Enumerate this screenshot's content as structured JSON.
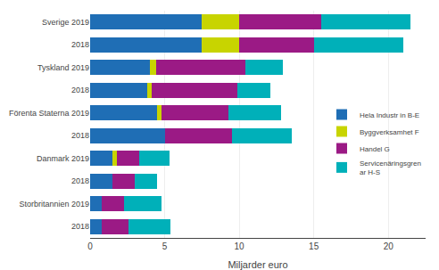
{
  "chart_data": {
    "type": "bar",
    "orientation": "horizontal",
    "stacked": true,
    "categories": [
      "Sverige 2019",
      "2018",
      "Tyskland 2019",
      "2018",
      "Förenta Staterna 2019",
      "2018",
      "Danmark 2019",
      "2018",
      "Storbritannien 2019",
      "2018"
    ],
    "series": [
      {
        "name": "Hela Industr in B-E",
        "color": "#1f6eb5",
        "values": [
          7.5,
          7.5,
          4.0,
          3.8,
          4.5,
          5.0,
          1.5,
          1.5,
          0.8,
          0.8
        ]
      },
      {
        "name": "Byggverksamhet F",
        "color": "#c8d400",
        "values": [
          2.5,
          2.5,
          0.4,
          0.3,
          0.3,
          0.0,
          0.3,
          0.0,
          0.0,
          0.0
        ]
      },
      {
        "name": "Handel G",
        "color": "#9b1a85",
        "values": [
          5.5,
          5.0,
          6.0,
          5.8,
          4.5,
          4.5,
          1.5,
          1.5,
          1.5,
          1.8
        ]
      },
      {
        "name": "Servicenäringsgren\nar H-S",
        "color": "#00b0b9",
        "values": [
          6.0,
          6.0,
          2.5,
          2.2,
          3.5,
          4.0,
          2.0,
          1.5,
          2.5,
          2.8
        ]
      }
    ],
    "xlabel": "Miljarder euro",
    "xlim": [
      0,
      22.5
    ],
    "xticks": [
      0,
      5,
      10,
      15,
      20
    ],
    "grid": true,
    "legend": "right"
  }
}
